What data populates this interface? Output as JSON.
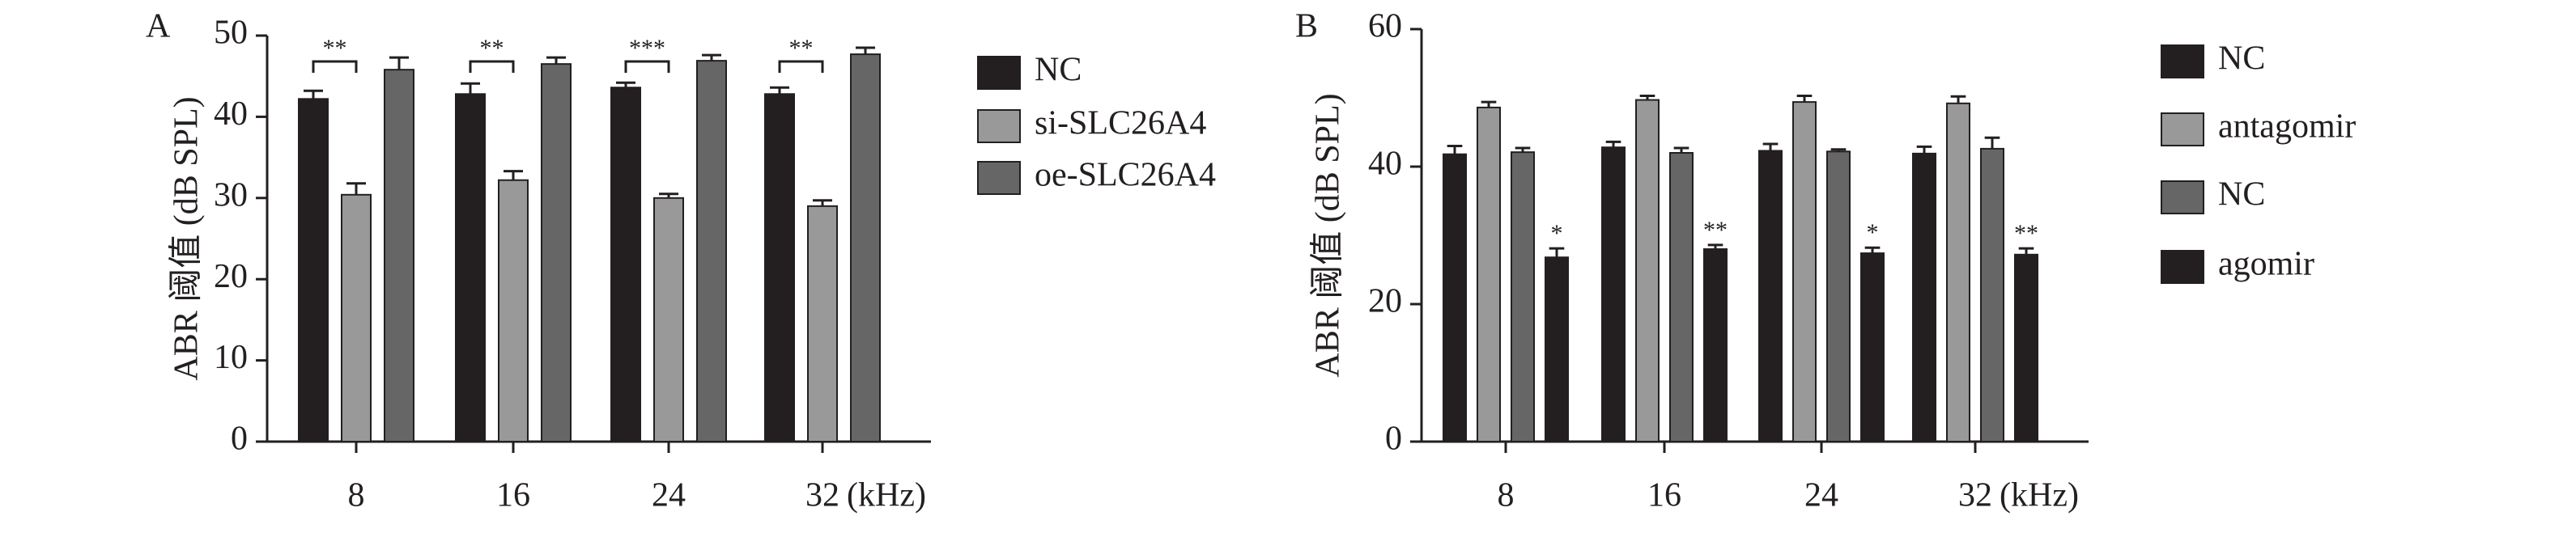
{
  "chart_data": [
    {
      "type": "bar",
      "panel": "A",
      "ylabel": "ABR 阈值 (dB SPL)",
      "xlabel": "(kHz)",
      "categories": [
        "8",
        "16",
        "24",
        "32"
      ],
      "series": [
        {
          "name": "NC",
          "color": "#231f20",
          "values": [
            42.2,
            42.8,
            43.6,
            42.8
          ],
          "errors": [
            1.0,
            1.3,
            0.6,
            0.8
          ]
        },
        {
          "name": "si-SLC26A4",
          "color": "#999999",
          "values": [
            30.4,
            32.2,
            30.0,
            29.0
          ],
          "errors": [
            1.4,
            1.1,
            0.5,
            0.7
          ]
        },
        {
          "name": "oe-SLC26A4",
          "color": "#666666",
          "values": [
            45.8,
            46.5,
            46.9,
            47.7
          ],
          "errors": [
            1.5,
            0.8,
            0.7,
            0.8
          ]
        }
      ],
      "significance": [
        "**",
        "**",
        "***",
        "**"
      ],
      "ylim": [
        0,
        50
      ],
      "yticks": [
        0,
        10,
        20,
        30,
        40,
        50
      ]
    },
    {
      "type": "bar",
      "panel": "B",
      "ylabel": "ABR 阈值 (dB SPL)",
      "xlabel": "(kHz)",
      "categories": [
        "8",
        "16",
        "24",
        "32"
      ],
      "series": [
        {
          "name": "NC",
          "color": "#231f20",
          "values": [
            41.8,
            42.8,
            42.3,
            41.9
          ],
          "errors": [
            1.2,
            0.8,
            1.0,
            1.0
          ]
        },
        {
          "name": "antagomir",
          "color": "#999999",
          "values": [
            48.6,
            49.7,
            49.4,
            49.2
          ],
          "errors": [
            0.8,
            0.6,
            0.9,
            1.0
          ]
        },
        {
          "name": "NC",
          "color": "#666666",
          "values": [
            42.1,
            42.0,
            42.2,
            42.6
          ],
          "errors": [
            0.6,
            0.7,
            0.3,
            1.6
          ]
        },
        {
          "name": "agomir",
          "color": "#231f20",
          "values": [
            26.8,
            28.0,
            27.4,
            27.2
          ],
          "errors": [
            1.3,
            0.6,
            0.8,
            0.9
          ]
        }
      ],
      "significance": [
        "*",
        "**",
        "*",
        "**"
      ],
      "ylim": [
        0,
        60
      ],
      "yticks": [
        0,
        20,
        40,
        60
      ]
    }
  ]
}
